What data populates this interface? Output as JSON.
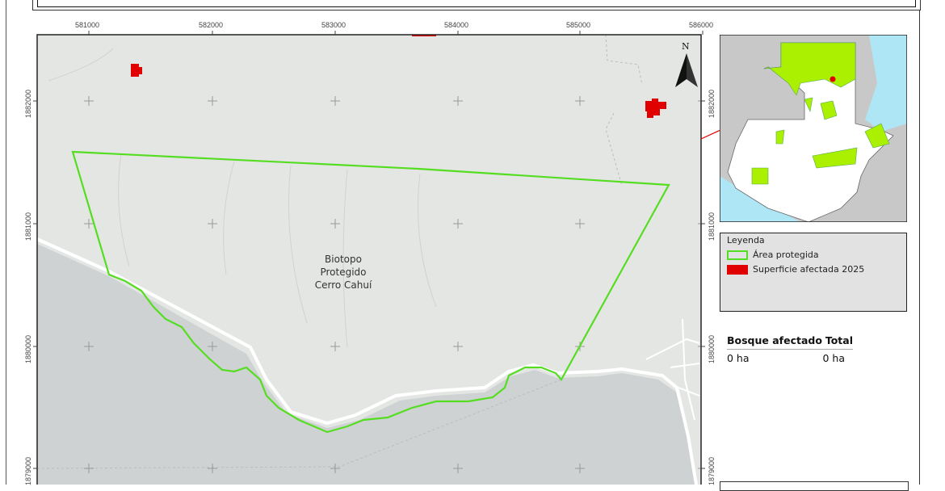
{
  "map": {
    "feature_label": [
      "Biotopo",
      "Protegido",
      "Cerro Cahuí"
    ],
    "north_label": "N",
    "x_ticks": [
      "581000",
      "582000",
      "583000",
      "584000",
      "585000",
      "586000"
    ],
    "y_ticks": [
      "1882000",
      "1881000",
      "1880000",
      "1879000"
    ],
    "colors": {
      "protected_area": "#55dd22",
      "affected": "#e00000",
      "land": "#e4e6e4",
      "water": "#cfd2d3"
    }
  },
  "legend": {
    "title": "Leyenda",
    "items": [
      {
        "label": "Área protegida",
        "symbol": "green-outline-box"
      },
      {
        "label": "Superficie afectada 2025",
        "symbol": "red-fill-box"
      }
    ]
  },
  "stats": {
    "headers": [
      "Bosque afectado",
      "Total"
    ],
    "values": [
      "0 ha",
      "0 ha"
    ]
  }
}
